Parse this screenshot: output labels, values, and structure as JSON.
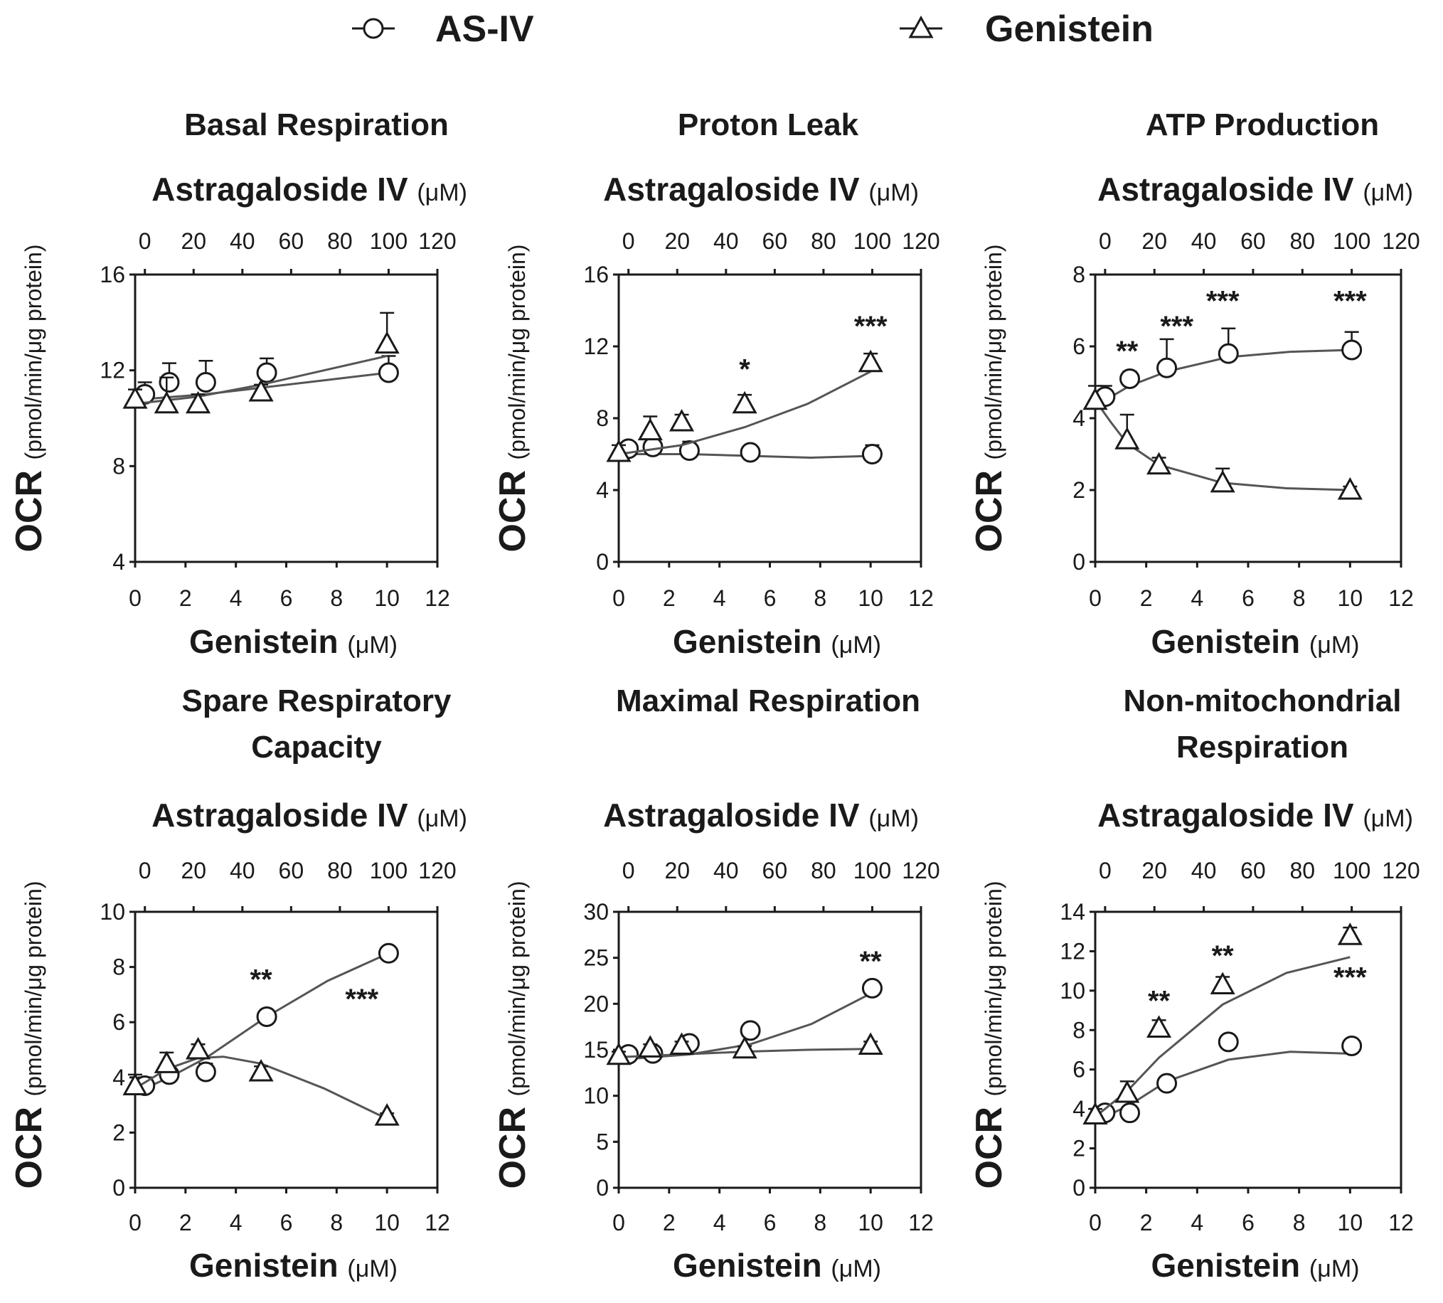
{
  "legend": [
    {
      "name": "AS-IV",
      "marker": "circle"
    },
    {
      "name": "Genistein",
      "marker": "triangle"
    }
  ],
  "colors": {
    "marker_fill": "#ffffff",
    "ink": "#1a1a1a",
    "curve": "#555555"
  },
  "chart_data": [
    {
      "type": "scatter",
      "title": [
        "Basal Respiration"
      ],
      "xlabel": "Genistein",
      "xunit": "(μM)",
      "x2label": "Astragaloside IV",
      "x2unit": "(μM)",
      "ylabel": "OCR",
      "yunit": "(pmol/min/μg protein)",
      "xlim": [
        0,
        12
      ],
      "xticks": [
        "0",
        "2",
        "4",
        "6",
        "8",
        "10",
        "12"
      ],
      "x2lim": [
        -4,
        120
      ],
      "x2ticks": [
        "0",
        "20",
        "40",
        "60",
        "80",
        "100",
        "120"
      ],
      "ylim": [
        4,
        16
      ],
      "yticks": [
        "4",
        "8",
        "12",
        "16"
      ],
      "series": [
        {
          "name": "AS-IV",
          "marker": "circle",
          "x2": [
            0,
            10,
            25,
            50,
            100
          ],
          "y": [
            11.0,
            11.5,
            11.5,
            11.9,
            11.9
          ],
          "err": [
            0.5,
            0.8,
            0.9,
            0.6,
            0.7
          ],
          "fit": [
            [
              0,
              10.8
            ],
            [
              25,
              11.0
            ],
            [
              50,
              11.3
            ],
            [
              75,
              11.6
            ],
            [
              100,
              11.9
            ]
          ]
        },
        {
          "name": "Genistein",
          "marker": "triangle",
          "x": [
            0,
            1.25,
            2.5,
            5,
            10
          ],
          "y": [
            10.8,
            10.6,
            10.6,
            11.1,
            13.1
          ],
          "err": [
            0.4,
            1.1,
            0.4,
            0.3,
            1.3
          ],
          "fit": [
            [
              0,
              10.6
            ],
            [
              2.5,
              10.9
            ],
            [
              5,
              11.4
            ],
            [
              7.5,
              12.0
            ],
            [
              10,
              12.6
            ]
          ]
        }
      ],
      "annotations": []
    },
    {
      "type": "scatter",
      "title": [
        "Proton Leak"
      ],
      "xlabel": "Genistein",
      "xunit": "(μM)",
      "x2label": "Astragaloside IV",
      "x2unit": "(μM)",
      "ylabel": "OCR",
      "yunit": "(pmol/min/μg protein)",
      "xlim": [
        0,
        12
      ],
      "xticks": [
        "0",
        "2",
        "4",
        "6",
        "8",
        "10",
        "12"
      ],
      "x2lim": [
        -4,
        120
      ],
      "x2ticks": [
        "0",
        "20",
        "40",
        "60",
        "80",
        "100",
        "120"
      ],
      "ylim": [
        0,
        16
      ],
      "yticks": [
        "0",
        "4",
        "8",
        "12",
        "16"
      ],
      "series": [
        {
          "name": "AS-IV",
          "marker": "circle",
          "x2": [
            0,
            10,
            25,
            50,
            100
          ],
          "y": [
            6.3,
            6.4,
            6.2,
            6.1,
            6.0
          ],
          "err": [
            0.3,
            0.4,
            0.5,
            0.3,
            0.5
          ],
          "fit": [
            [
              0,
              6.0
            ],
            [
              25,
              6.0
            ],
            [
              50,
              5.9
            ],
            [
              75,
              5.8
            ],
            [
              100,
              5.9
            ]
          ]
        },
        {
          "name": "Genistein",
          "marker": "triangle",
          "x": [
            0,
            1.25,
            2.5,
            5,
            10
          ],
          "y": [
            6.1,
            7.3,
            7.8,
            8.8,
            11.1
          ],
          "err": [
            0.4,
            0.8,
            0.4,
            0.5,
            0.5
          ],
          "fit": [
            [
              0,
              6.0
            ],
            [
              2.5,
              6.5
            ],
            [
              5,
              7.5
            ],
            [
              7.5,
              8.8
            ],
            [
              10,
              10.6
            ]
          ]
        }
      ],
      "annotations": [
        {
          "text": "*",
          "x": 5,
          "y": 10.2
        },
        {
          "text": "***",
          "x": 10,
          "y": 12.6
        }
      ]
    },
    {
      "type": "scatter",
      "title": [
        "ATP Production"
      ],
      "xlabel": "Genistein",
      "xunit": "(μM)",
      "x2label": "Astragaloside IV",
      "x2unit": "(μM)",
      "ylabel": "OCR",
      "yunit": "(pmol/min/μg protein)",
      "xlim": [
        0,
        12
      ],
      "xticks": [
        "0",
        "2",
        "4",
        "6",
        "8",
        "10",
        "12"
      ],
      "x2lim": [
        -4,
        120
      ],
      "x2ticks": [
        "0",
        "20",
        "40",
        "60",
        "80",
        "100",
        "120"
      ],
      "ylim": [
        0,
        8
      ],
      "yticks": [
        "0",
        "2",
        "4",
        "6",
        "8"
      ],
      "series": [
        {
          "name": "AS-IV",
          "marker": "circle",
          "x2": [
            0,
            10,
            25,
            50,
            100
          ],
          "y": [
            4.6,
            5.1,
            5.4,
            5.8,
            5.9
          ],
          "err": [
            0.3,
            0.2,
            0.8,
            0.7,
            0.5
          ],
          "fit": [
            [
              0,
              4.5
            ],
            [
              10,
              4.9
            ],
            [
              25,
              5.3
            ],
            [
              50,
              5.7
            ],
            [
              75,
              5.85
            ],
            [
              100,
              5.9
            ]
          ]
        },
        {
          "name": "Genistein",
          "marker": "triangle",
          "x": [
            0,
            1.25,
            2.5,
            5,
            10
          ],
          "y": [
            4.5,
            3.4,
            2.7,
            2.2,
            2.0
          ],
          "err": [
            0.4,
            0.7,
            0.2,
            0.4,
            0.1
          ],
          "fit": [
            [
              0,
              4.5
            ],
            [
              0.6,
              3.9
            ],
            [
              1.25,
              3.3
            ],
            [
              2.5,
              2.7
            ],
            [
              5,
              2.2
            ],
            [
              7.5,
              2.05
            ],
            [
              10,
              2.0
            ]
          ]
        }
      ],
      "annotations": [
        {
          "text": "**",
          "x": 1.25,
          "y": 5.6
        },
        {
          "text": "***",
          "x": 3.2,
          "y": 6.3
        },
        {
          "text": "***",
          "x": 5,
          "y": 7.0
        },
        {
          "text": "***",
          "x": 10,
          "y": 7.0
        }
      ]
    },
    {
      "type": "scatter",
      "title": [
        "Spare Respiratory",
        "Capacity"
      ],
      "xlabel": "Genistein",
      "xunit": "(μM)",
      "x2label": "Astragaloside IV",
      "x2unit": "(μM)",
      "ylabel": "OCR",
      "yunit": "(pmol/min/μg protein)",
      "xlim": [
        0,
        12
      ],
      "xticks": [
        "0",
        "2",
        "4",
        "6",
        "8",
        "10",
        "12"
      ],
      "x2lim": [
        -4,
        120
      ],
      "x2ticks": [
        "0",
        "20",
        "40",
        "60",
        "80",
        "100",
        "120"
      ],
      "ylim": [
        0,
        10
      ],
      "yticks": [
        "0",
        "2",
        "4",
        "6",
        "8",
        "10"
      ],
      "series": [
        {
          "name": "AS-IV",
          "marker": "circle",
          "x2": [
            0,
            10,
            25,
            50,
            100
          ],
          "y": [
            3.7,
            4.1,
            4.2,
            6.2,
            8.5
          ],
          "err": [
            0.3,
            0.3,
            0.3,
            0.2,
            0.2
          ],
          "fit": [
            [
              0,
              3.6
            ],
            [
              10,
              4.0
            ],
            [
              25,
              4.7
            ],
            [
              50,
              6.2
            ],
            [
              75,
              7.5
            ],
            [
              100,
              8.5
            ]
          ]
        },
        {
          "name": "Genistein",
          "marker": "triangle",
          "x": [
            0,
            1.25,
            2.5,
            5,
            10
          ],
          "y": [
            3.7,
            4.5,
            5.0,
            4.2,
            2.6
          ],
          "err": [
            0.4,
            0.4,
            0.2,
            0.2,
            0.1
          ],
          "fit": [
            [
              0,
              3.6
            ],
            [
              1.25,
              4.3
            ],
            [
              2.5,
              4.7
            ],
            [
              3.5,
              4.75
            ],
            [
              5,
              4.5
            ],
            [
              7.5,
              3.6
            ],
            [
              10,
              2.5
            ]
          ]
        }
      ],
      "annotations": [
        {
          "text": "**",
          "x": 5,
          "y": 7.2
        },
        {
          "text": "***",
          "x": 9.0,
          "y": 6.5
        }
      ]
    },
    {
      "type": "scatter",
      "title": [
        "Maximal Respiration"
      ],
      "xlabel": "Genistein",
      "xunit": "(μM)",
      "x2label": "Astragaloside IV",
      "x2unit": "(μM)",
      "ylabel": "OCR",
      "yunit": "(pmol/min/μg protein)",
      "xlim": [
        0,
        12
      ],
      "xticks": [
        "0",
        "2",
        "4",
        "6",
        "8",
        "10",
        "12"
      ],
      "x2lim": [
        -4,
        120
      ],
      "x2ticks": [
        "0",
        "20",
        "40",
        "60",
        "80",
        "100",
        "120"
      ],
      "ylim": [
        0,
        30
      ],
      "yticks": [
        "0",
        "5",
        "10",
        "15",
        "20",
        "25",
        "30"
      ],
      "series": [
        {
          "name": "AS-IV",
          "marker": "circle",
          "x2": [
            0,
            10,
            25,
            50,
            100
          ],
          "y": [
            14.5,
            14.6,
            15.7,
            17.1,
            21.7
          ],
          "err": [
            0.5,
            0.4,
            0.5,
            0.4,
            0.5
          ],
          "fit": [
            [
              0,
              14.0
            ],
            [
              25,
              14.5
            ],
            [
              50,
              15.6
            ],
            [
              75,
              17.8
            ],
            [
              100,
              21.2
            ]
          ]
        },
        {
          "name": "Genistein",
          "marker": "triangle",
          "x": [
            0,
            1.25,
            2.5,
            5,
            10
          ],
          "y": [
            14.4,
            15.2,
            15.5,
            15.1,
            15.5
          ],
          "err": [
            0.4,
            0.4,
            0.4,
            0.3,
            0.4
          ],
          "fit": [
            [
              0,
              14.2
            ],
            [
              2.5,
              14.5
            ],
            [
              5,
              14.8
            ],
            [
              7.5,
              15.0
            ],
            [
              10,
              15.1
            ]
          ]
        }
      ],
      "annotations": [
        {
          "text": "**",
          "x": 10,
          "y": 23.6
        }
      ]
    },
    {
      "type": "scatter",
      "title": [
        "Non-mitochondrial",
        "Respiration"
      ],
      "xlabel": "Genistein",
      "xunit": "(μM)",
      "x2label": "Astragaloside IV",
      "x2unit": "(μM)",
      "ylabel": "OCR",
      "yunit": "(pmol/min/μg protein)",
      "xlim": [
        0,
        12
      ],
      "xticks": [
        "0",
        "2",
        "4",
        "6",
        "8",
        "10",
        "12"
      ],
      "x2lim": [
        -4,
        120
      ],
      "x2ticks": [
        "0",
        "20",
        "40",
        "60",
        "80",
        "100",
        "120"
      ],
      "ylim": [
        0,
        14
      ],
      "yticks": [
        "0",
        "2",
        "4",
        "6",
        "8",
        "10",
        "12",
        "14"
      ],
      "series": [
        {
          "name": "AS-IV",
          "marker": "circle",
          "x2": [
            0,
            10,
            25,
            50,
            100
          ],
          "y": [
            3.8,
            3.8,
            5.3,
            7.4,
            7.2
          ],
          "err": [
            0.3,
            0.3,
            0.3,
            0.3,
            0.3
          ],
          "fit": [
            [
              0,
              3.6
            ],
            [
              10,
              4.2
            ],
            [
              25,
              5.4
            ],
            [
              50,
              6.5
            ],
            [
              75,
              6.9
            ],
            [
              100,
              6.8
            ]
          ]
        },
        {
          "name": "Genistein",
          "marker": "triangle",
          "x": [
            0,
            1.25,
            2.5,
            5,
            10
          ],
          "y": [
            3.7,
            4.8,
            8.1,
            10.3,
            12.8
          ],
          "err": [
            0.3,
            0.6,
            0.4,
            0.4,
            0.4
          ],
          "fit": [
            [
              0,
              3.6
            ],
            [
              1.25,
              4.9
            ],
            [
              2.5,
              6.6
            ],
            [
              5,
              9.3
            ],
            [
              7.5,
              10.9
            ],
            [
              10,
              11.7
            ]
          ]
        }
      ],
      "annotations": [
        {
          "text": "**",
          "x": 2.5,
          "y": 9.0
        },
        {
          "text": "**",
          "x": 5,
          "y": 11.3
        },
        {
          "text": "***",
          "x": 10,
          "y": 10.2
        }
      ]
    }
  ]
}
